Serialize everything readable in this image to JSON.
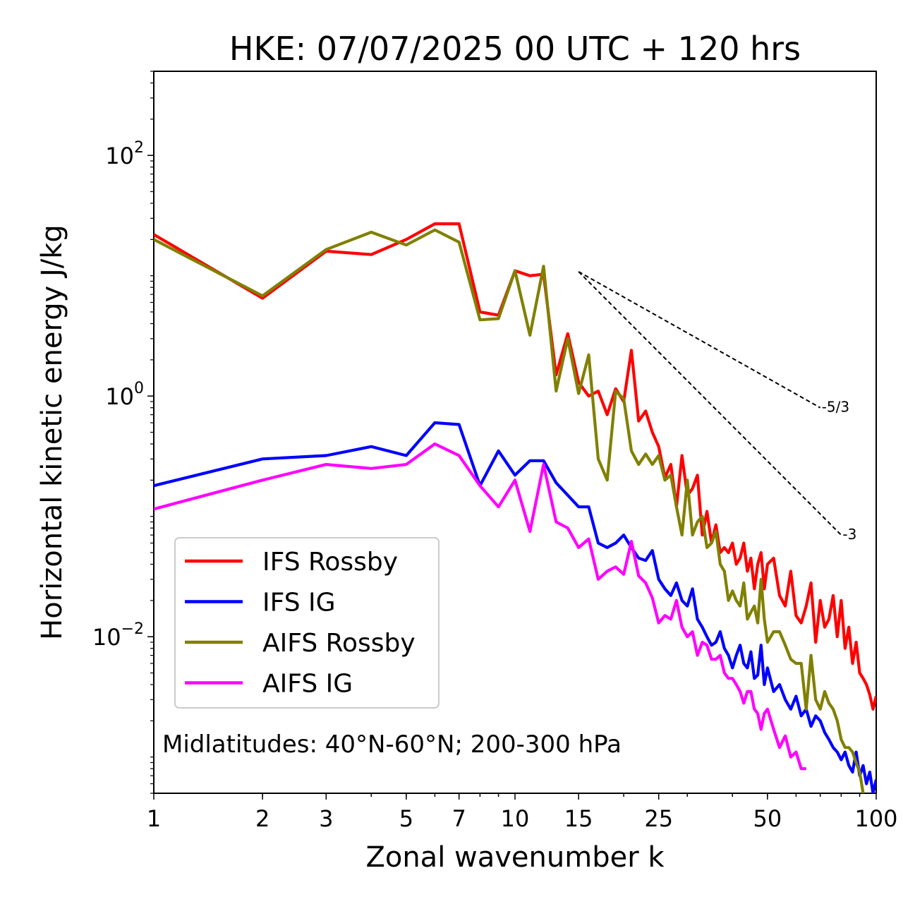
{
  "chart_data": {
    "type": "line",
    "title": "HKE: 07/07/2025 00 UTC + 120 hrs",
    "xlabel": "Zonal wavenumber k",
    "ylabel": "Horizontal kinetic energy J/kg",
    "xscale": "log",
    "yscale": "log",
    "xlim": [
      1,
      100
    ],
    "ylim": [
      0.0005,
      500
    ],
    "x_ticks": [
      1,
      2,
      3,
      5,
      7,
      10,
      15,
      25,
      50,
      100
    ],
    "x_tick_labels": [
      "1",
      "2",
      "3",
      "5",
      "7",
      "10",
      "15",
      "25",
      "50",
      "100"
    ],
    "y_ticks": [
      0.01,
      1,
      100
    ],
    "y_tick_labels": [
      {
        "base": "10",
        "exp": "−2"
      },
      {
        "base": "10",
        "exp": "0"
      },
      {
        "base": "10",
        "exp": "2"
      }
    ],
    "annotation": "Midlatitudes: 40°N-60°N; 200-300 hPa",
    "legend_position": "lower-left",
    "series": [
      {
        "name": "IFS Rossby",
        "color": "#ff0000",
        "x": [
          1,
          2,
          3,
          4,
          5,
          6,
          7,
          8,
          9,
          10,
          11,
          12,
          13,
          14,
          15,
          16,
          17,
          18,
          19,
          20,
          21,
          22,
          23,
          24,
          25,
          26,
          27,
          28,
          29,
          30,
          31,
          32,
          33,
          34,
          35,
          36,
          37,
          38,
          39,
          40,
          41,
          42,
          43,
          44,
          45,
          46,
          47,
          48,
          49,
          50,
          52,
          54,
          56,
          58,
          60,
          62,
          64,
          66,
          68,
          70,
          72,
          74,
          76,
          78,
          80,
          82,
          84,
          86,
          88,
          90,
          92,
          94,
          96,
          98,
          100
        ],
        "values": [
          22,
          6.5,
          16,
          15,
          20,
          27,
          27,
          5,
          4.7,
          11,
          10,
          10.3,
          1.5,
          3.3,
          1.3,
          1.0,
          1.1,
          0.7,
          1.15,
          0.9,
          2.4,
          0.62,
          0.75,
          0.5,
          0.38,
          0.21,
          0.27,
          0.12,
          0.32,
          0.15,
          0.17,
          0.22,
          0.07,
          0.11,
          0.06,
          0.085,
          0.05,
          0.055,
          0.05,
          0.06,
          0.04,
          0.045,
          0.06,
          0.035,
          0.045,
          0.025,
          0.04,
          0.05,
          0.025,
          0.04,
          0.045,
          0.022,
          0.018,
          0.035,
          0.015,
          0.013,
          0.018,
          0.028,
          0.009,
          0.02,
          0.012,
          0.014,
          0.022,
          0.01,
          0.02,
          0.008,
          0.012,
          0.006,
          0.009,
          0.005,
          0.0045,
          0.004,
          0.0033,
          0.0025,
          0.0032
        ]
      },
      {
        "name": "IFS IG",
        "color": "#0000ff",
        "x": [
          1,
          2,
          3,
          4,
          5,
          6,
          7,
          8,
          9,
          10,
          11,
          12,
          13,
          14,
          15,
          16,
          17,
          18,
          19,
          20,
          21,
          22,
          23,
          24,
          25,
          26,
          27,
          28,
          29,
          30,
          31,
          32,
          33,
          34,
          35,
          36,
          37,
          38,
          39,
          40,
          41,
          42,
          43,
          44,
          45,
          46,
          47,
          48,
          49,
          50,
          52,
          54,
          56,
          58,
          60,
          62,
          64,
          66,
          68,
          70,
          72,
          74,
          76,
          78,
          80,
          82,
          84,
          86,
          88,
          90,
          92,
          94,
          96,
          98,
          100
        ],
        "values": [
          0.18,
          0.3,
          0.32,
          0.38,
          0.32,
          0.6,
          0.58,
          0.18,
          0.35,
          0.22,
          0.29,
          0.29,
          0.19,
          0.15,
          0.12,
          0.12,
          0.06,
          0.055,
          0.06,
          0.07,
          0.055,
          0.045,
          0.043,
          0.052,
          0.03,
          0.025,
          0.022,
          0.028,
          0.02,
          0.018,
          0.025,
          0.014,
          0.012,
          0.01,
          0.0085,
          0.009,
          0.011,
          0.008,
          0.007,
          0.0055,
          0.007,
          0.0085,
          0.006,
          0.0055,
          0.0075,
          0.0045,
          0.0048,
          0.0085,
          0.004,
          0.0055,
          0.0035,
          0.004,
          0.003,
          0.0025,
          0.0032,
          0.0022,
          0.0025,
          0.0018,
          0.0022,
          0.002,
          0.0016,
          0.0014,
          0.0012,
          0.0011,
          0.00095,
          0.0011,
          0.00085,
          0.00075,
          0.0011,
          0.0007,
          0.00085,
          0.0006,
          0.00075,
          0.0005,
          0.00065
        ]
      },
      {
        "name": "AIFS Rossby",
        "color": "#808000",
        "x": [
          1,
          2,
          3,
          4,
          5,
          6,
          7,
          8,
          9,
          10,
          11,
          12,
          13,
          14,
          15,
          16,
          17,
          18,
          19,
          20,
          21,
          22,
          23,
          24,
          25,
          26,
          27,
          28,
          29,
          30,
          31,
          32,
          33,
          34,
          35,
          36,
          37,
          38,
          39,
          40,
          41,
          42,
          43,
          44,
          45,
          46,
          47,
          48,
          49,
          50,
          52,
          54,
          56,
          58,
          60,
          62,
          64,
          66,
          68,
          70,
          72,
          74,
          76,
          78,
          80,
          82,
          84,
          86,
          88,
          90,
          92
        ],
        "values": [
          20,
          6.8,
          16.5,
          23,
          18,
          24,
          19,
          4.3,
          4.4,
          11,
          3.2,
          12,
          1.1,
          3.0,
          1.05,
          2.2,
          0.3,
          0.2,
          1.1,
          0.95,
          0.35,
          0.27,
          0.33,
          0.27,
          0.32,
          0.2,
          0.22,
          0.12,
          0.07,
          0.2,
          0.07,
          0.09,
          0.1,
          0.055,
          0.06,
          0.075,
          0.04,
          0.035,
          0.02,
          0.024,
          0.02,
          0.018,
          0.028,
          0.014,
          0.016,
          0.018,
          0.013,
          0.03,
          0.014,
          0.009,
          0.011,
          0.011,
          0.0085,
          0.0065,
          0.006,
          0.006,
          0.0025,
          0.007,
          0.003,
          0.0025,
          0.0035,
          0.0028,
          0.0025,
          0.002,
          0.0014,
          0.0012,
          0.0012,
          0.0011,
          0.0009,
          0.00075,
          0.0005
        ]
      },
      {
        "name": "AIFS IG",
        "color": "#ff00ff",
        "x": [
          1,
          2,
          3,
          4,
          5,
          6,
          7,
          8,
          9,
          10,
          11,
          12,
          13,
          14,
          15,
          16,
          17,
          18,
          19,
          20,
          21,
          22,
          23,
          24,
          25,
          26,
          27,
          28,
          29,
          30,
          31,
          32,
          33,
          34,
          35,
          36,
          37,
          38,
          39,
          40,
          41,
          42,
          43,
          44,
          45,
          46,
          47,
          48,
          49,
          50,
          52,
          54,
          56,
          58,
          60,
          62,
          64
        ],
        "values": [
          0.115,
          0.2,
          0.27,
          0.25,
          0.27,
          0.4,
          0.32,
          0.18,
          0.12,
          0.2,
          0.075,
          0.27,
          0.09,
          0.08,
          0.055,
          0.065,
          0.03,
          0.035,
          0.038,
          0.033,
          0.062,
          0.032,
          0.028,
          0.021,
          0.013,
          0.015,
          0.014,
          0.02,
          0.012,
          0.01,
          0.011,
          0.007,
          0.009,
          0.0085,
          0.0065,
          0.0065,
          0.007,
          0.005,
          0.0045,
          0.0045,
          0.004,
          0.0035,
          0.0028,
          0.0035,
          0.0035,
          0.0025,
          0.0023,
          0.0017,
          0.0023,
          0.0025,
          0.0017,
          0.0012,
          0.0015,
          0.001,
          0.0011,
          0.0008,
          0.0008
        ]
      }
    ],
    "reference_slopes": [
      {
        "label": "-5/3",
        "x": [
          15,
          70
        ],
        "y": [
          10.8,
          0.8
        ]
      },
      {
        "label": "-3",
        "x": [
          15,
          80
        ],
        "y": [
          10.8,
          0.07
        ]
      }
    ]
  }
}
